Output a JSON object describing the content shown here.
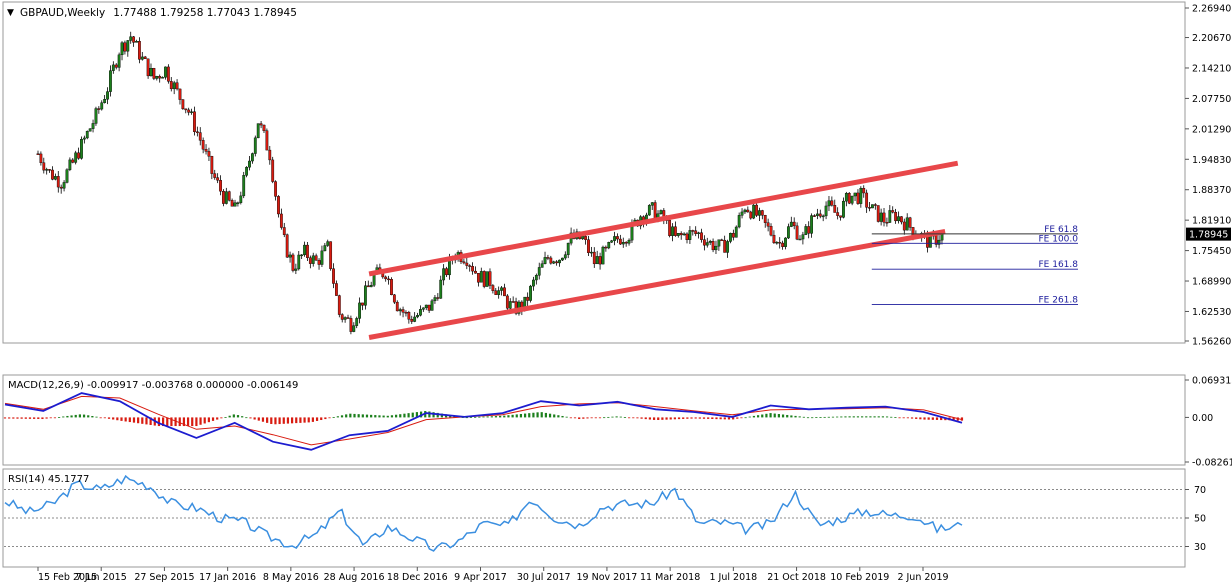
{
  "main": {
    "title": "GBPAUD,Weekly",
    "ohlc": "1.77488 1.79258 1.77043 1.78945",
    "price_ticks": [
      "2.26940",
      "2.20670",
      "2.14210",
      "2.07750",
      "2.01290",
      "1.94830",
      "1.88370",
      "1.81910",
      "1.75450",
      "1.68990",
      "1.62530",
      "1.56260"
    ],
    "current_price": "1.78945"
  },
  "macd": {
    "label": "MACD(12,26,9) -0.009917 -0.003768 0.000000 -0.006149",
    "ticks": [
      "0.069313",
      "0.00",
      "-0.082619"
    ]
  },
  "rsi": {
    "label": "RSI(14) 45.1777",
    "ticks": [
      "70",
      "50",
      "30"
    ]
  },
  "dates": [
    "15 Feb 2015",
    "7 Jun 2015",
    "27 Sep 2015",
    "17 Jan 2016",
    "8 May 2016",
    "28 Aug 2016",
    "18 Dec 2016",
    "9 Apr 2017",
    "30 Jul 2017",
    "19 Nov 2017",
    "11 Mar 2018",
    "1 Jul 2018",
    "21 Oct 2018",
    "10 Feb 2019",
    "2 Jun 2019"
  ],
  "fibo": [
    "FE 61.8",
    "FE 100.0",
    "FE 161.8",
    "FE 261.8"
  ],
  "colors": {
    "channel": "#e8474a",
    "bull": "#1c7f1c",
    "bear": "#d81b10",
    "macd_line": "#1c1ccf",
    "signal_line": "#d81b10",
    "rsi_line": "#3b8fe0",
    "fibo": "#1c1c9c"
  },
  "chart_data": [
    {
      "type": "candlestick",
      "title": "GBPAUD,Weekly",
      "x": [
        "15 Feb 2015",
        "7 Jun 2015",
        "27 Sep 2015",
        "17 Jan 2016",
        "8 May 2016",
        "28 Aug 2016",
        "18 Dec 2016",
        "9 Apr 2017",
        "30 Jul 2017",
        "19 Nov 2017",
        "11 Mar 2018",
        "1 Jul 2018",
        "21 Oct 2018",
        "10 Feb 2019",
        "2 Jun 2019"
      ],
      "close_path": [
        1.96,
        1.92,
        1.9,
        1.94,
        1.99,
        2.04,
        2.1,
        2.18,
        2.21,
        2.16,
        2.12,
        2.14,
        2.09,
        2.05,
        1.99,
        1.92,
        1.87,
        1.84,
        1.92,
        2.03,
        1.96,
        1.79,
        1.72,
        1.75,
        1.73,
        1.76,
        1.62,
        1.6,
        1.65,
        1.7,
        1.71,
        1.64,
        1.61,
        1.62,
        1.64,
        1.7,
        1.75,
        1.74,
        1.7,
        1.69,
        1.66,
        1.63,
        1.64,
        1.7,
        1.74,
        1.74,
        1.78,
        1.78,
        1.73,
        1.75,
        1.78,
        1.79,
        1.83,
        1.84,
        1.82,
        1.78,
        1.79,
        1.79,
        1.77,
        1.76,
        1.79,
        1.85,
        1.83,
        1.8,
        1.77,
        1.81,
        1.78,
        1.83,
        1.85,
        1.83,
        1.87,
        1.87,
        1.84,
        1.82,
        1.83,
        1.81,
        1.79,
        1.77,
        1.79
      ],
      "ylim": [
        1.5626,
        2.2694
      ],
      "current_price": 1.78945,
      "channel_lines": [
        {
          "start": [
            "28 Aug 2016",
            1.705
          ],
          "end": [
            "18 Aug 2019",
            1.94
          ]
        },
        {
          "start": [
            "28 Aug 2016",
            1.57
          ],
          "end": [
            "21 Jul 2019",
            1.795
          ]
        }
      ],
      "fibo_levels": [
        {
          "label": "FE 61.8",
          "value": 1.79
        },
        {
          "label": "FE 100.0",
          "value": 1.77
        },
        {
          "label": "FE 161.8",
          "value": 1.715
        },
        {
          "label": "FE 261.8",
          "value": 1.64
        }
      ]
    },
    {
      "type": "line",
      "title": "MACD(12,26,9) -0.009917 -0.003768 0.000000 -0.006149",
      "ylim": [
        -0.082619,
        0.069313
      ],
      "x_fraction": [
        0.0,
        0.04,
        0.08,
        0.12,
        0.16,
        0.2,
        0.24,
        0.28,
        0.32,
        0.36,
        0.4,
        0.44,
        0.48,
        0.52,
        0.56,
        0.6,
        0.64,
        0.68,
        0.72,
        0.76,
        0.8,
        0.84,
        0.88,
        0.92,
        0.96,
        1.0
      ],
      "series": [
        {
          "name": "MACD",
          "values": [
            0.024,
            0.012,
            0.045,
            0.03,
            -0.01,
            -0.038,
            -0.01,
            -0.045,
            -0.06,
            -0.033,
            -0.025,
            0.008,
            0.001,
            0.008,
            0.03,
            0.022,
            0.029,
            0.015,
            0.01,
            0.001,
            0.022,
            0.015,
            0.018,
            0.02,
            0.01,
            -0.01
          ]
        },
        {
          "name": "Signal",
          "values": [
            0.026,
            0.015,
            0.039,
            0.036,
            0.006,
            -0.022,
            -0.016,
            -0.032,
            -0.051,
            -0.04,
            -0.028,
            -0.004,
            0.001,
            0.005,
            0.02,
            0.025,
            0.027,
            0.02,
            0.012,
            0.005,
            0.014,
            0.015,
            0.016,
            0.018,
            0.014,
            -0.004
          ]
        },
        {
          "name": "Histogram",
          "values": [
            -0.002,
            -0.003,
            0.006,
            -0.006,
            -0.016,
            -0.016,
            0.006,
            -0.013,
            -0.009,
            0.007,
            0.003,
            0.012,
            0.0,
            0.003,
            0.01,
            -0.003,
            0.002,
            -0.005,
            -0.002,
            -0.004,
            0.008,
            0.0,
            0.002,
            0.002,
            -0.004,
            -0.006
          ]
        }
      ]
    },
    {
      "type": "line",
      "title": "RSI(14) 45.1777",
      "ylim": [
        17,
        83
      ],
      "levels": [
        70,
        50,
        30
      ],
      "x_fraction": [
        0.0,
        0.025,
        0.05,
        0.075,
        0.1,
        0.125,
        0.15,
        0.175,
        0.2,
        0.225,
        0.25,
        0.275,
        0.3,
        0.325,
        0.35,
        0.375,
        0.4,
        0.425,
        0.45,
        0.475,
        0.5,
        0.525,
        0.55,
        0.575,
        0.6,
        0.625,
        0.65,
        0.675,
        0.7,
        0.725,
        0.75,
        0.775,
        0.8,
        0.825,
        0.85,
        0.875,
        0.9,
        0.925,
        0.95,
        0.975,
        1.0
      ],
      "series": [
        {
          "name": "RSI",
          "values": [
            62,
            54,
            60,
            74,
            70,
            78,
            73,
            60,
            57,
            50,
            47,
            37,
            31,
            38,
            55,
            30,
            44,
            36,
            28,
            34,
            46,
            44,
            64,
            50,
            45,
            58,
            60,
            60,
            70,
            46,
            47,
            42,
            46,
            68,
            45,
            50,
            55,
            52,
            52,
            42,
            45
          ]
        }
      ]
    }
  ]
}
